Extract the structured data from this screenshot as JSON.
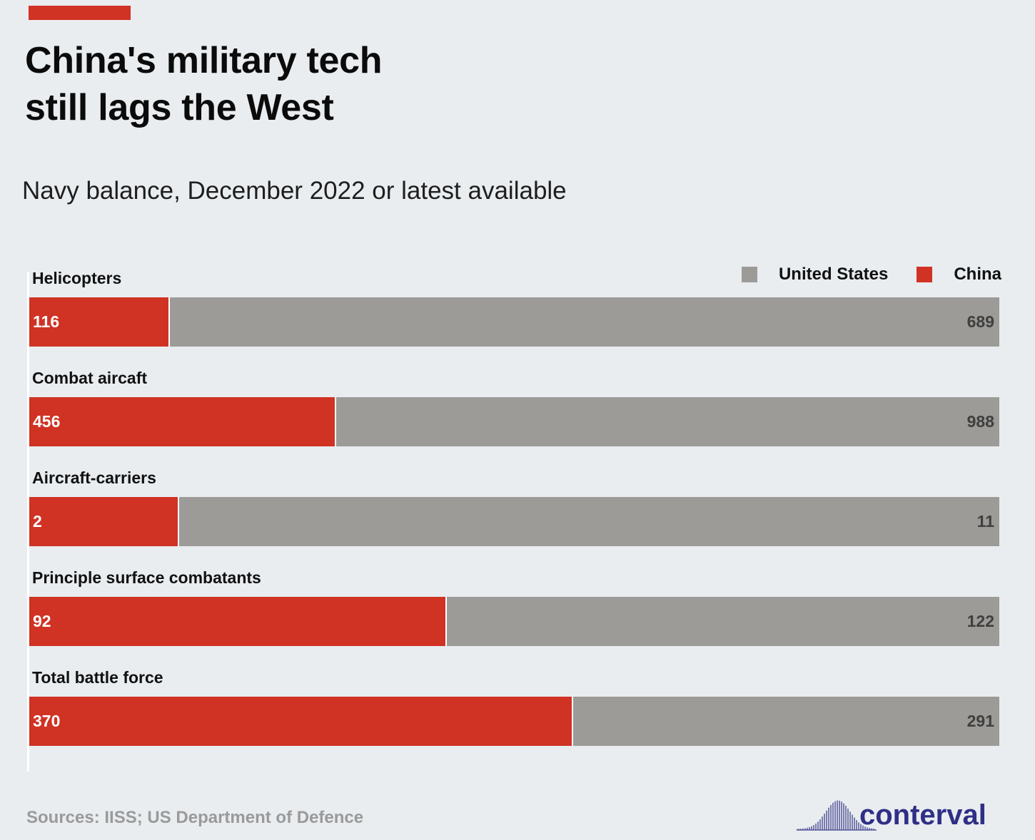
{
  "title_lines": [
    "China's military tech",
    "still lags the West"
  ],
  "subtitle": "Navy balance, December 2022 or latest available",
  "source": "Sources: IISS; US Department of Defence",
  "brand": "conterval",
  "colors": {
    "china": "#d03224",
    "united_states": "#9c9b97",
    "background": "#e9edf0",
    "brand_text": "#2f2f86",
    "brand_wave": "#3e3f8c"
  },
  "legend": [
    {
      "label": "United States",
      "color": "#9c9b97"
    },
    {
      "label": "China",
      "color": "#d03224"
    }
  ],
  "chart_data": {
    "type": "bar",
    "orientation": "horizontal",
    "stacked": "100%",
    "categories": [
      "Helicopters",
      "Combat aircaft",
      "Aircraft-carriers",
      "Principle surface combatants",
      "Total battle force"
    ],
    "series": [
      {
        "name": "China",
        "values": [
          116,
          456,
          2,
          92,
          370
        ]
      },
      {
        "name": "United States",
        "values": [
          689,
          988,
          11,
          122,
          291
        ]
      }
    ],
    "legend_position": "top-right",
    "grid": false
  }
}
